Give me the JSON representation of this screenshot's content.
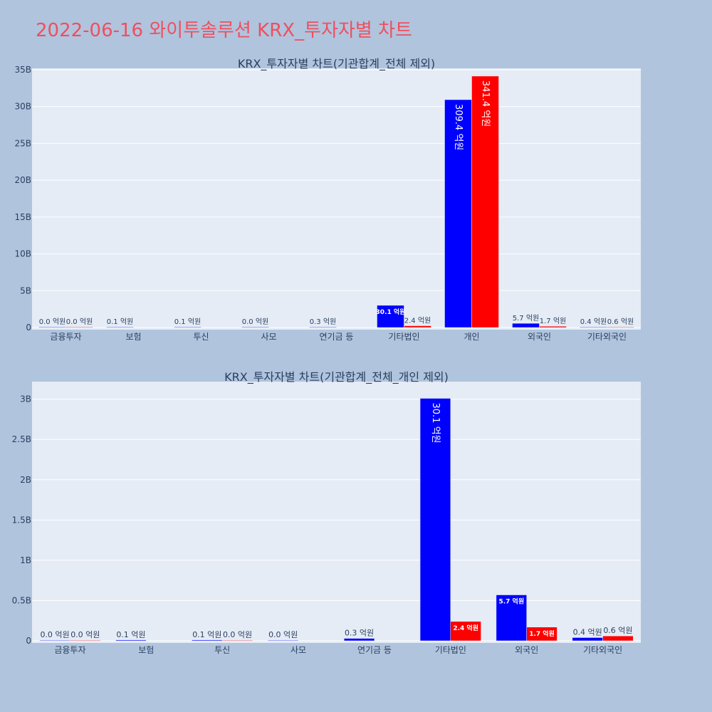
{
  "title": "2022-06-16 와이투솔루션 KRX_투자자별 차트",
  "colors": {
    "buy": "#0000ff",
    "sell": "#ff0000",
    "plot_bg": "#e5ecf6",
    "page_bg": "#b0c4de",
    "title": "#ef4f5e"
  },
  "chart_data": [
    {
      "type": "bar",
      "title": "KRX_투자자별 차트(기관합계_전체 제외)",
      "categories": [
        "금융투자",
        "보험",
        "투신",
        "사모",
        "연기금 등",
        "기타법인",
        "개인",
        "외국인",
        "기타외국인"
      ],
      "ylim": [
        0,
        35
      ],
      "y_ticks": [
        0,
        5,
        10,
        15,
        20,
        25,
        30,
        35
      ],
      "y_tick_labels": [
        "0",
        "5B",
        "10B",
        "15B",
        "20B",
        "25B",
        "30B",
        "35B"
      ],
      "series": [
        {
          "color": "#0000ff",
          "values": [
            0.0,
            0.01,
            0.01,
            0.0,
            0.03,
            3.01,
            30.94,
            0.57,
            0.04
          ],
          "labels": [
            "0.0 억원",
            "0.1 억원",
            "0.1 억원",
            "0.0 억원",
            "0.3 억원",
            "30.1 억원",
            "309.4 억원",
            "5.7 억원",
            "0.4 억원"
          ]
        },
        {
          "color": "#ff0000",
          "values": [
            0.0,
            null,
            null,
            null,
            null,
            0.24,
            34.14,
            0.17,
            0.06
          ],
          "labels": [
            "0.0 억원",
            "",
            "",
            "",
            "",
            "2.4 억원",
            "341.4 억원",
            "1.7 억원",
            "0.6 억원"
          ]
        }
      ]
    },
    {
      "type": "bar",
      "title": "KRX_투자자별 차트(기관합계_전체_개인 제외)",
      "categories": [
        "금융투자",
        "보험",
        "투신",
        "사모",
        "연기금 등",
        "기타법인",
        "외국인",
        "기타외국인"
      ],
      "ylim": [
        0,
        3.2
      ],
      "y_ticks": [
        0,
        0.5,
        1,
        1.5,
        2,
        2.5,
        3
      ],
      "y_tick_labels": [
        "0",
        "0.5B",
        "1B",
        "1.5B",
        "2B",
        "2.5B",
        "3B"
      ],
      "series": [
        {
          "color": "#0000ff",
          "values": [
            0.0,
            0.01,
            0.01,
            0.0,
            0.03,
            3.01,
            0.57,
            0.04
          ],
          "labels": [
            "0.0 억원",
            "0.1 억원",
            "0.1 억원",
            "0.0 억원",
            "0.3 억원",
            "30.1 억원",
            "5.7 억원",
            "0.4 억원"
          ]
        },
        {
          "color": "#ff0000",
          "values": [
            0.0,
            null,
            0.0,
            null,
            null,
            0.24,
            0.17,
            0.06
          ],
          "labels": [
            "0.0 억원",
            "",
            "0.0 억원",
            "",
            "",
            "2.4 억원",
            "1.7 억원",
            "0.6 억원"
          ]
        }
      ]
    }
  ]
}
